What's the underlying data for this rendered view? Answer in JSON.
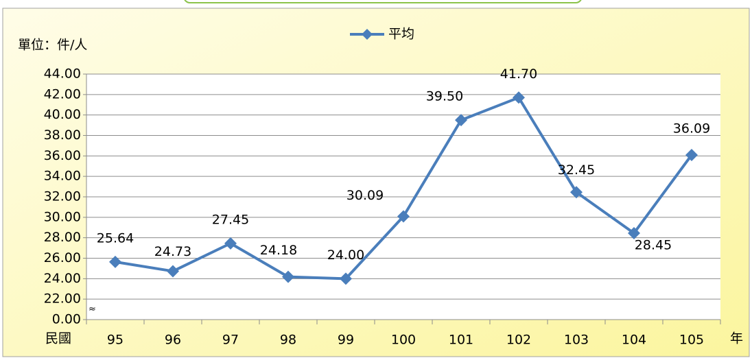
{
  "chart_data": {
    "type": "line",
    "unit_label": "單位：件/人",
    "x_label_left": "民國",
    "x_label_right": "年",
    "categories": [
      "95",
      "96",
      "97",
      "98",
      "99",
      "100",
      "101",
      "102",
      "103",
      "104",
      "105"
    ],
    "series": [
      {
        "name": "平均",
        "color": "#4a7ebb",
        "values": [
          25.64,
          24.73,
          27.45,
          24.18,
          24.0,
          30.09,
          39.5,
          41.7,
          32.45,
          28.45,
          36.09
        ],
        "value_labels": [
          "25.64",
          "24.73",
          "27.45",
          "24.18",
          "24.00",
          "30.09",
          "39.50",
          "41.70",
          "32.45",
          "28.45",
          "36.09"
        ]
      }
    ],
    "ylim": [
      0,
      44
    ],
    "axis_break": true,
    "yticks": [
      {
        "value": 0,
        "label": "0.00"
      },
      {
        "value": 22,
        "label": "22.00"
      },
      {
        "value": 24,
        "label": "24.00"
      },
      {
        "value": 26,
        "label": "26.00"
      },
      {
        "value": 28,
        "label": "28.00"
      },
      {
        "value": 30,
        "label": "30.00"
      },
      {
        "value": 32,
        "label": "32.00"
      },
      {
        "value": 34,
        "label": "34.00"
      },
      {
        "value": 36,
        "label": "36.00"
      },
      {
        "value": 38,
        "label": "38.00"
      },
      {
        "value": 40,
        "label": "40.00"
      },
      {
        "value": 42,
        "label": "42.00"
      },
      {
        "value": 44,
        "label": "44.00"
      }
    ],
    "grid": true,
    "legend": "top"
  }
}
